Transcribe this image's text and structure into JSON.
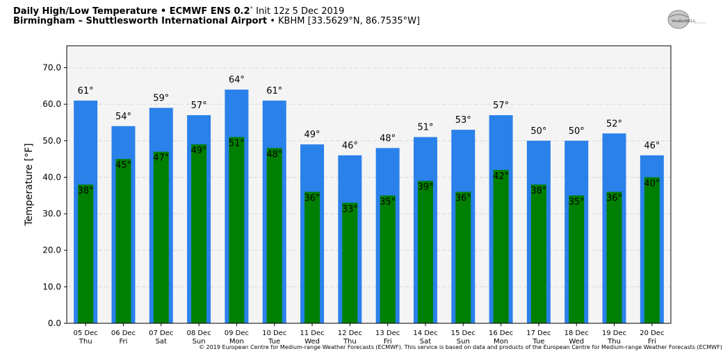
{
  "header": {
    "line1_bold": "Daily High/Low Temperature • ECMWF ENS 0.2",
    "line1_deg": "°",
    "line1_rest": " Init 12z 5 Dec 2019",
    "line2_bold": "Birmingham – Shuttlesworth International Airport",
    "line2_rest": " • KBHM [33.5629°N, 86.7535°W]"
  },
  "logo": {
    "text": "WeatherBELL"
  },
  "footer": "© 2019 European Centre for Medium-range Weather Forecasts (ECMWF). This service is based on data and products of the European Centre for Medium-range Weather Forecasts (ECMWF)",
  "chart_data": {
    "type": "bar",
    "title": "",
    "xlabel": "",
    "ylabel": "Temperature [°F]",
    "ylim": [
      0,
      76
    ],
    "yticks": [
      "0.0",
      "10.0",
      "20.0",
      "30.0",
      "40.0",
      "50.0",
      "60.0",
      "70.0"
    ],
    "grid": true,
    "legend": "none",
    "unit_suffix": "°",
    "categories": [
      [
        "05 Dec",
        "Thu"
      ],
      [
        "06 Dec",
        "Fri"
      ],
      [
        "07 Dec",
        "Sat"
      ],
      [
        "08 Dec",
        "Sun"
      ],
      [
        "09 Dec",
        "Mon"
      ],
      [
        "10 Dec",
        "Tue"
      ],
      [
        "11 Dec",
        "Wed"
      ],
      [
        "12 Dec",
        "Thu"
      ],
      [
        "13 Dec",
        "Fri"
      ],
      [
        "14 Dec",
        "Sat"
      ],
      [
        "15 Dec",
        "Sun"
      ],
      [
        "16 Dec",
        "Mon"
      ],
      [
        "17 Dec",
        "Tue"
      ],
      [
        "18 Dec",
        "Wed"
      ],
      [
        "19 Dec",
        "Thu"
      ],
      [
        "20 Dec",
        "Fri"
      ]
    ],
    "series": [
      {
        "key": "high",
        "color": "#2a81ea",
        "values": [
          61,
          54,
          59,
          57,
          64,
          61,
          49,
          46,
          48,
          51,
          53,
          57,
          50,
          50,
          52,
          46
        ]
      },
      {
        "key": "low",
        "color": "#008000",
        "values": [
          38,
          45,
          47,
          49,
          51,
          48,
          36,
          33,
          35,
          39,
          36,
          42,
          38,
          35,
          36,
          40
        ]
      }
    ],
    "colors": {
      "plot_bg": "#f4f4f4",
      "grid": "#d8d8d8"
    }
  }
}
